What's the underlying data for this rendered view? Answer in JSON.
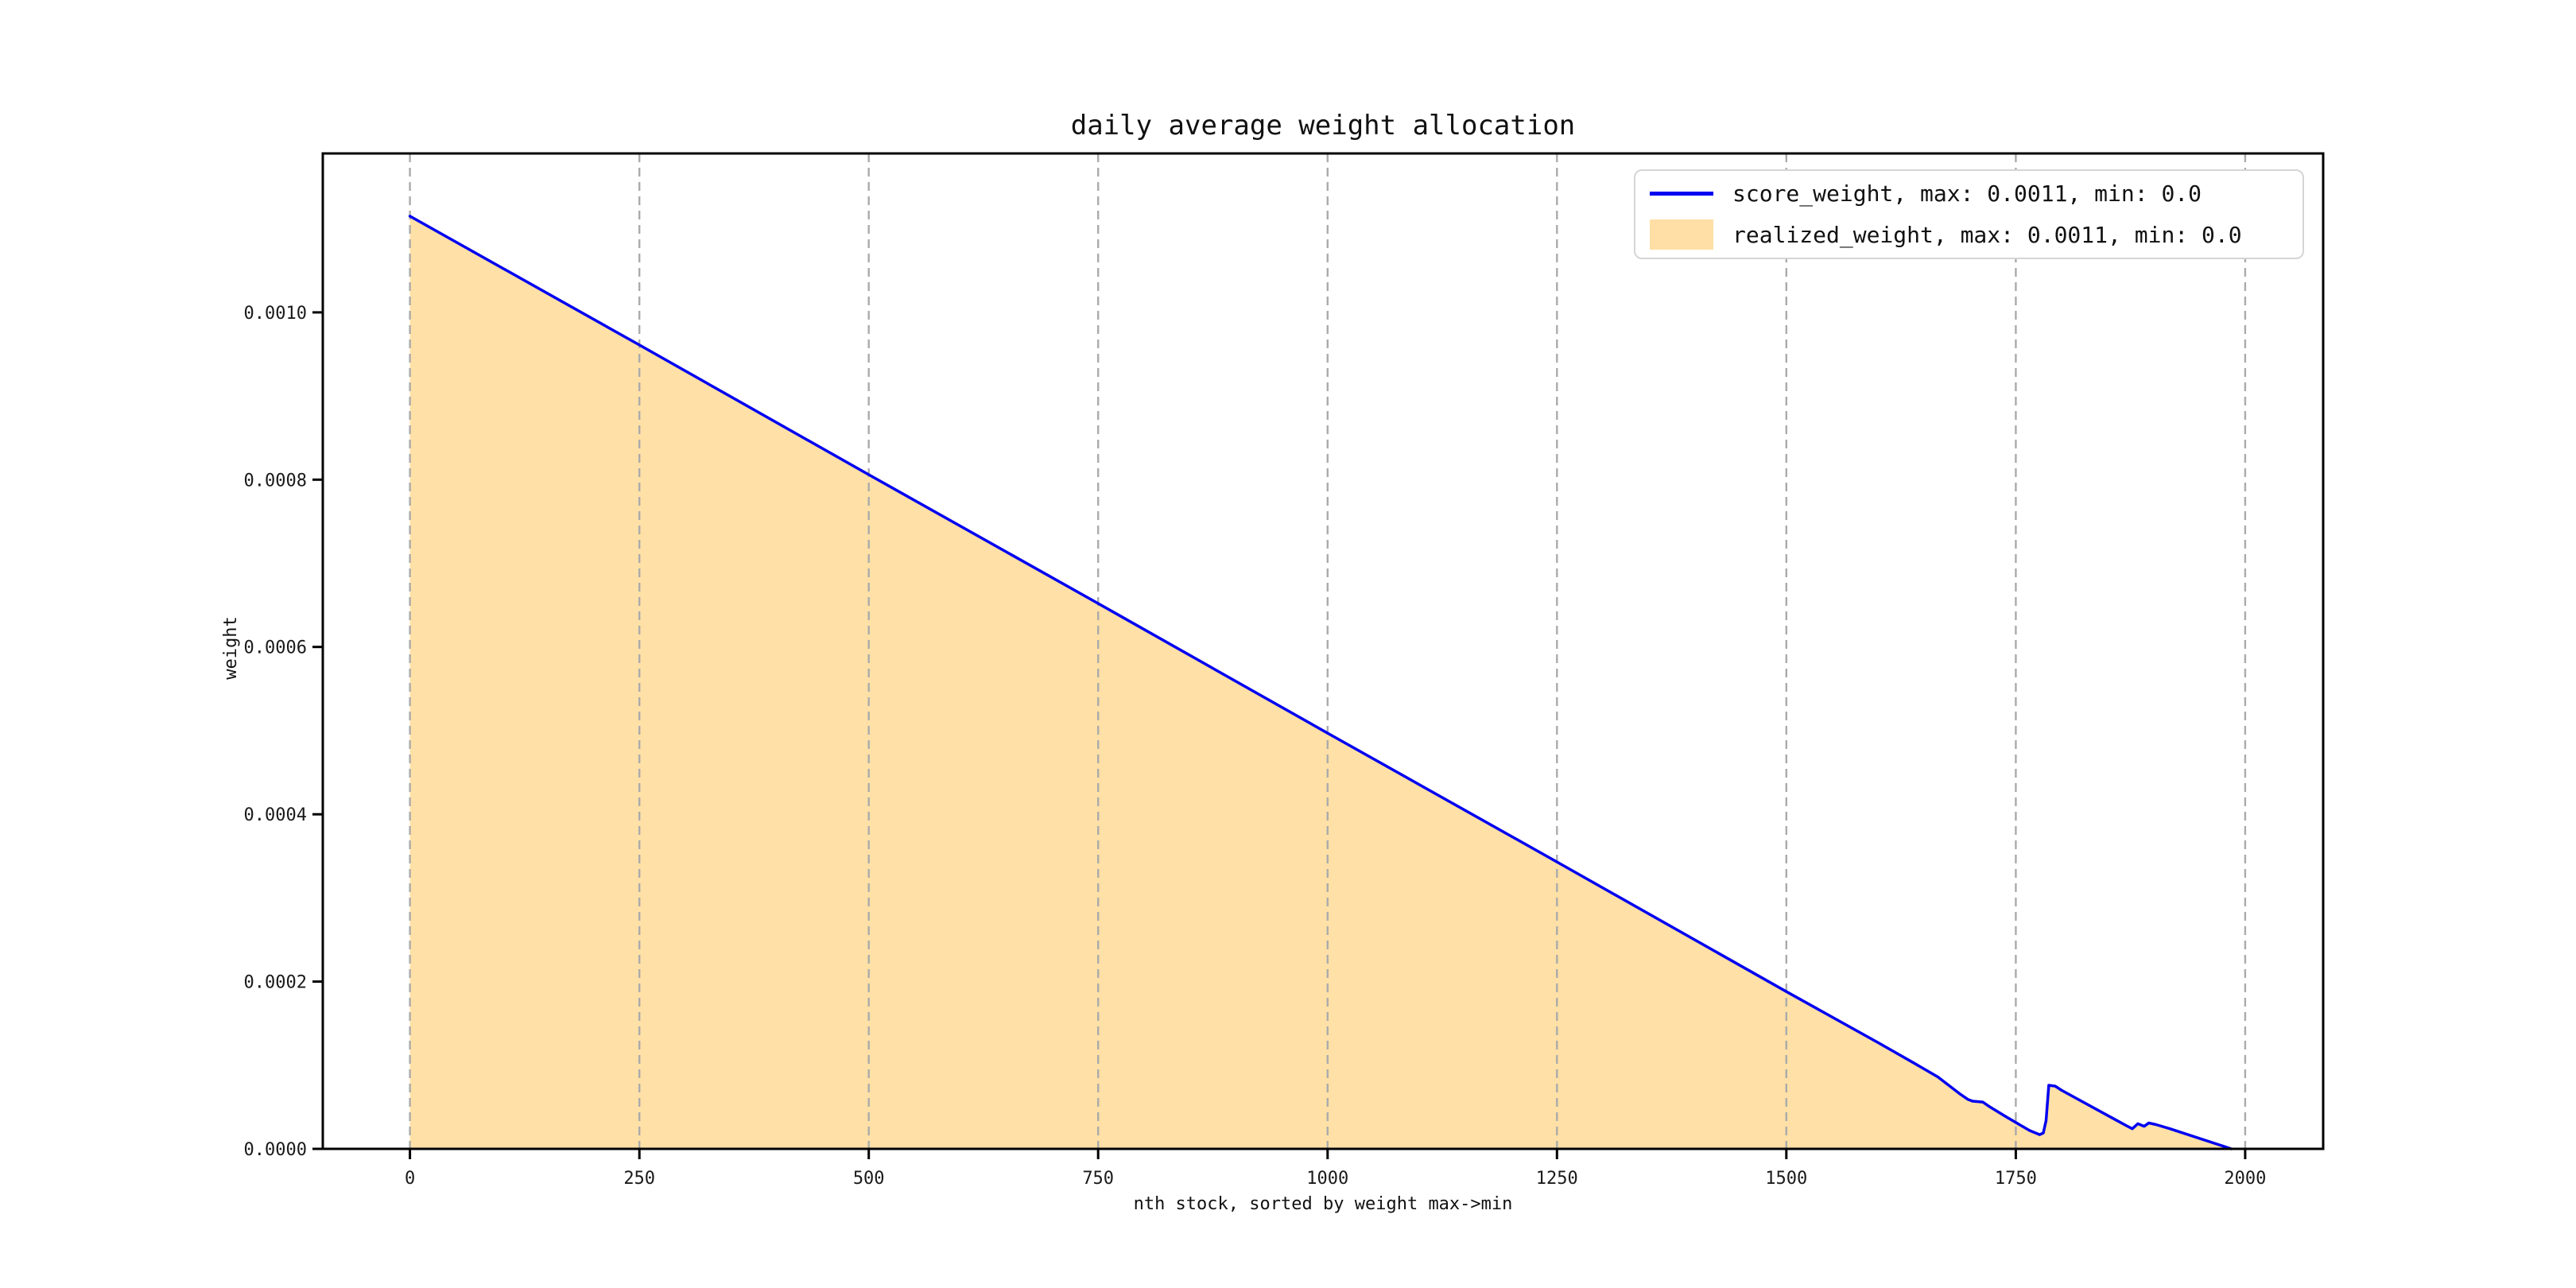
{
  "figure": {
    "title": "daily average weight allocation",
    "xlabel": "nth stock, sorted by weight max->min",
    "ylabel": "weight"
  },
  "legend": {
    "position": "upper right",
    "entries": [
      {
        "label": "score_weight, max: 0.0011, min: 0.0",
        "swatch": "line",
        "color": "#0000f0"
      },
      {
        "label": "realized_weight, max: 0.0011, min: 0.0",
        "swatch": "fill",
        "color": "#ffa500",
        "effective_color": "#ffdfa6"
      }
    ]
  },
  "colors": {
    "line_blue": "#0000f0",
    "fill_orange": "#ffa500",
    "fill_opacity": 0.35,
    "grid_gray": "#ababab",
    "spine_black": "#000000",
    "text": "#1a1a1a",
    "background": "#ffffff"
  },
  "chart_data": {
    "type": "area",
    "title": "daily average weight allocation",
    "xlabel": "nth stock, sorted by weight max->min",
    "ylabel": "weight",
    "xlim": [
      -95,
      2085
    ],
    "ylim": [
      0,
      0.00119
    ],
    "grid": "vertical-dashed-only",
    "legend_position": "upper right",
    "x_tick_values": [
      0,
      250,
      500,
      750,
      1000,
      1250,
      1500,
      1750,
      2000
    ],
    "x_tick_labels": [
      "0",
      "250",
      "500",
      "750",
      "1000",
      "1250",
      "1500",
      "1750",
      "2000"
    ],
    "y_tick_values": [
      0.0,
      0.0002,
      0.0004,
      0.0006,
      0.0008,
      0.001
    ],
    "y_tick_labels": [
      "0.0000",
      "0.0002",
      "0.0004",
      "0.0006",
      "0.0008",
      "0.0010"
    ],
    "x": [
      0,
      250,
      500,
      750,
      1000,
      1250,
      1500,
      1600,
      1640,
      1665,
      1690,
      1698,
      1703,
      1714,
      1722,
      1740,
      1765,
      1776,
      1780,
      1783,
      1786,
      1793,
      1800,
      1860,
      1870,
      1877,
      1883,
      1890,
      1895,
      1903,
      1918,
      1985
    ],
    "series": [
      {
        "name": "score_weight, max: 0.0011, min: 0.0",
        "type": "line",
        "color": "#0000f0",
        "max": 0.0011,
        "min": 0.0,
        "values": [
          0.001115,
          0.000961,
          0.000806,
          0.000652,
          0.000497,
          0.000343,
          0.000188,
          0.000127,
          0.000102,
          8.6e-05,
          6.5e-05,
          5.9e-05,
          5.7e-05,
          5.6e-05,
          5e-05,
          3.8e-05,
          2.2e-05,
          1.7e-05,
          1.9e-05,
          3.4e-05,
          7.6e-05,
          7.5e-05,
          7e-05,
          3.4e-05,
          2.8e-05,
          2.4e-05,
          3e-05,
          2.7e-05,
          3.1e-05,
          2.9e-05,
          2.4e-05,
          0.0
        ]
      },
      {
        "name": "realized_weight, max: 0.0011, min: 0.0",
        "type": "area",
        "color": "#ffa500",
        "opacity": 0.35,
        "max": 0.0011,
        "min": 0.0,
        "values": [
          0.001115,
          0.000961,
          0.000806,
          0.000652,
          0.000497,
          0.000343,
          0.000188,
          0.000127,
          0.000102,
          8.6e-05,
          6.5e-05,
          5.9e-05,
          5.7e-05,
          5.6e-05,
          5e-05,
          3.8e-05,
          2.2e-05,
          1.7e-05,
          1.9e-05,
          3.4e-05,
          7.6e-05,
          7.5e-05,
          7e-05,
          3.4e-05,
          2.8e-05,
          2.4e-05,
          3e-05,
          2.7e-05,
          3.1e-05,
          2.9e-05,
          2.4e-05,
          0.0
        ]
      }
    ]
  }
}
